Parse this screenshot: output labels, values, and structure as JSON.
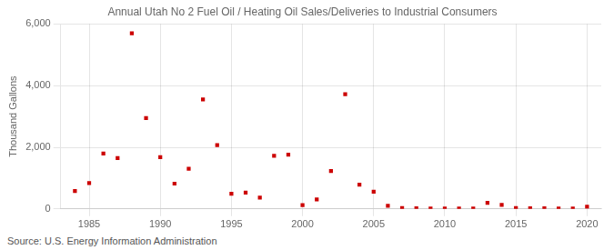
{
  "chart_data": {
    "type": "scatter",
    "title": "Annual Utah No 2 Fuel Oil / Heating Oil Sales/Deliveries to Industrial Consumers",
    "ylabel": "Thousand Gallons",
    "annotations": [
      "Source: U.S. Energy Information Administration"
    ],
    "x": [
      1984,
      1985,
      1986,
      1987,
      1988,
      1989,
      1990,
      1991,
      1992,
      1993,
      1994,
      1995,
      1996,
      1997,
      1998,
      1999,
      2000,
      2001,
      2002,
      2003,
      2004,
      2005,
      2006,
      2007,
      2008,
      2009,
      2010,
      2011,
      2012,
      2013,
      2014,
      2015,
      2016,
      2017,
      2018,
      2019,
      2020
    ],
    "values": [
      580,
      840,
      1800,
      1650,
      5700,
      2950,
      1680,
      820,
      1300,
      3550,
      2070,
      490,
      530,
      370,
      1720,
      1760,
      120,
      310,
      1230,
      3720,
      790,
      560,
      100,
      30,
      20,
      15,
      15,
      10,
      10,
      200,
      130,
      30,
      20,
      20,
      15,
      15,
      70
    ],
    "color": "#cc0000",
    "marker": "square",
    "xlim": [
      1983,
      2021
    ],
    "xticks": [
      1985,
      1990,
      1995,
      2000,
      2005,
      2010,
      2015,
      2020
    ],
    "ylim": [
      0,
      6000
    ],
    "yticks": [
      0,
      {
        "value": 2000,
        "label": "2,000"
      },
      {
        "value": 4000,
        "label": "4,000"
      },
      {
        "value": 6000,
        "label": "6,000"
      }
    ],
    "grid": true
  }
}
